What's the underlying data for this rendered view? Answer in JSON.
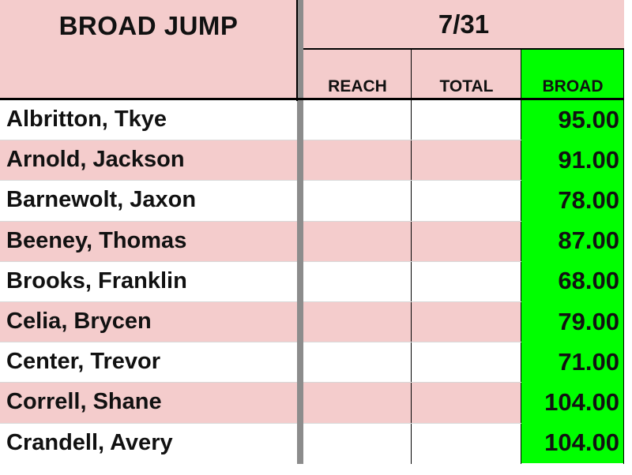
{
  "sheet": {
    "title": "BROAD JUMP",
    "date": "7/31",
    "columns": {
      "reach": "REACH",
      "total": "TOTAL",
      "broad": "BROAD"
    },
    "rows": [
      {
        "name": "Albritton, Tkye",
        "reach": "",
        "total": "",
        "broad": "95.00"
      },
      {
        "name": "Arnold, Jackson",
        "reach": "",
        "total": "",
        "broad": "91.00"
      },
      {
        "name": "Barnewolt, Jaxon",
        "reach": "",
        "total": "",
        "broad": "78.00"
      },
      {
        "name": "Beeney, Thomas",
        "reach": "",
        "total": "",
        "broad": "87.00"
      },
      {
        "name": "Brooks, Franklin",
        "reach": "",
        "total": "",
        "broad": "68.00"
      },
      {
        "name": "Celia, Brycen",
        "reach": "",
        "total": "",
        "broad": "79.00"
      },
      {
        "name": "Center, Trevor",
        "reach": "",
        "total": "",
        "broad": "71.00"
      },
      {
        "name": "Correll, Shane",
        "reach": "",
        "total": "",
        "broad": "104.00"
      },
      {
        "name": "Crandell, Avery",
        "reach": "",
        "total": "",
        "broad": "104.00"
      }
    ]
  },
  "colors": {
    "header_fill": "#f4cccc",
    "stripe_fill": "#f4cccc",
    "plain_fill": "#ffffff",
    "broad_fill": "#00ff00",
    "text": "#111111"
  }
}
